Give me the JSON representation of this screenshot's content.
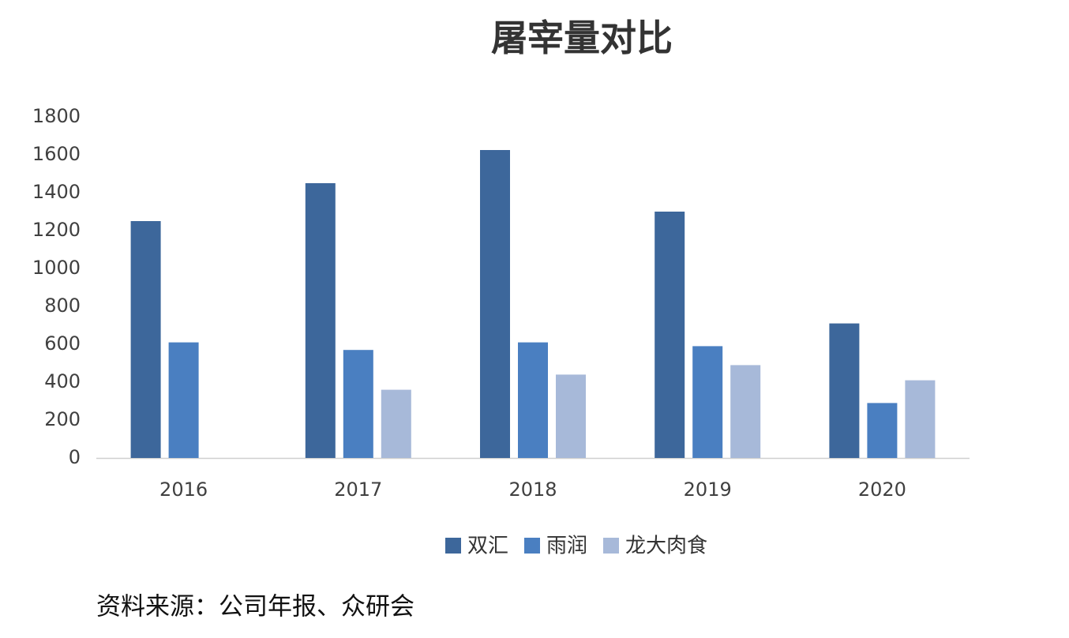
{
  "chart_data": {
    "type": "bar",
    "title": "屠宰量对比",
    "categories": [
      "2016",
      "2017",
      "2018",
      "2019",
      "2020"
    ],
    "series": [
      {
        "name": "双汇",
        "color": "#3d679b",
        "values": [
          1250,
          1450,
          1625,
          1300,
          710
        ]
      },
      {
        "name": "雨润",
        "color": "#4a7fc1",
        "values": [
          610,
          570,
          610,
          590,
          290
        ]
      },
      {
        "name": "龙大肉食",
        "color": "#a7b9d9",
        "values": [
          null,
          360,
          440,
          490,
          410
        ]
      }
    ],
    "ylim": [
      0,
      1800
    ],
    "yticks": [
      0,
      200,
      400,
      600,
      800,
      1000,
      1200,
      1400,
      1600,
      1800
    ],
    "grid": false,
    "legend": "bottom",
    "source": "资料来源：公司年报、众研会"
  }
}
